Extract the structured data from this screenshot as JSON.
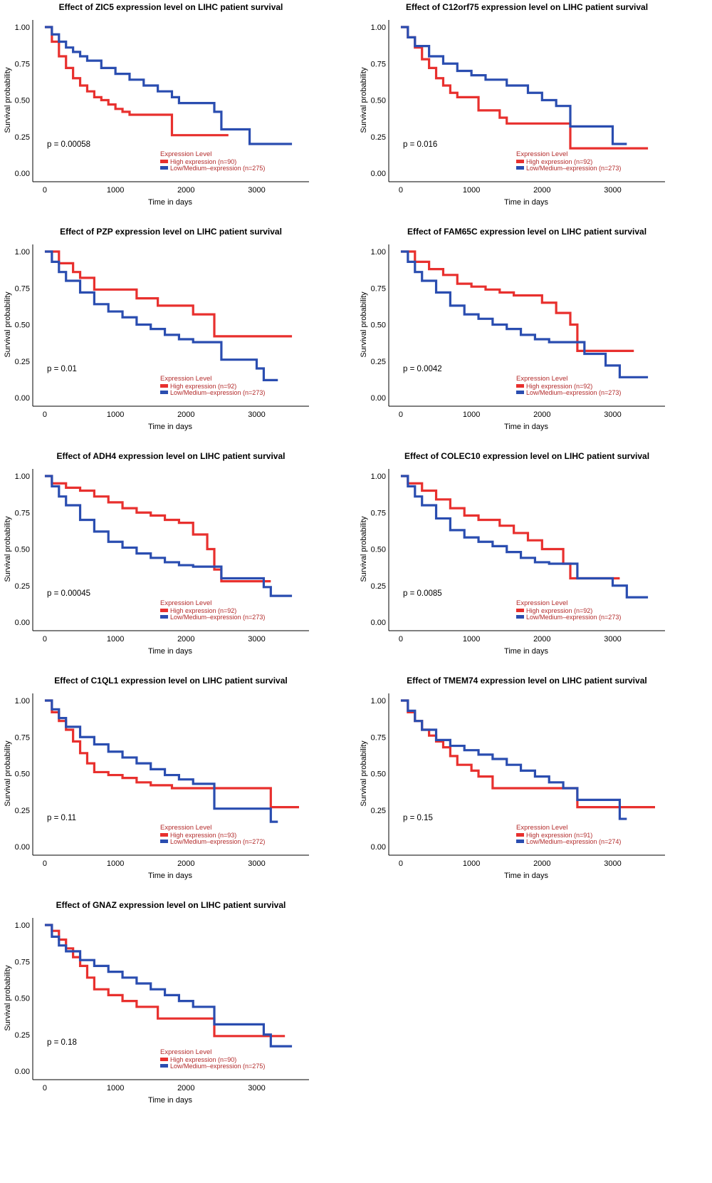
{
  "colors": {
    "high": "#e8302e",
    "low": "#2a4db0",
    "legend_text": "#b32b2b"
  },
  "chart_data": [
    {
      "type": "line",
      "title": "Effect of ZIC5 expression level on LIHC patient survival",
      "xlabel": "Time in days",
      "ylabel": "Survival probability",
      "xticks": [
        "0",
        "1000",
        "2000",
        "3000"
      ],
      "yticks": [
        "0.00",
        "0.25",
        "0.50",
        "0.75",
        "1.00"
      ],
      "xlim": [
        -50,
        3600
      ],
      "ylim": [
        0,
        1
      ],
      "pvalue": "p = 0.00058",
      "legend": {
        "title": "Expression Level",
        "high": "High expression (n=90)",
        "low": "Low/Medium–expression (n=275)"
      },
      "series": [
        {
          "name": "High expression (n=90)",
          "color": "#e8302e",
          "x": [
            0,
            100,
            200,
            300,
            400,
            500,
            600,
            700,
            800,
            900,
            1000,
            1100,
            1200,
            1800,
            2000,
            2600
          ],
          "y": [
            1,
            0.9,
            0.8,
            0.72,
            0.65,
            0.6,
            0.56,
            0.52,
            0.5,
            0.47,
            0.44,
            0.42,
            0.4,
            0.26,
            0.26,
            0.26
          ]
        },
        {
          "name": "Low/Medium–expression (n=275)",
          "color": "#2a4db0",
          "x": [
            0,
            100,
            200,
            300,
            400,
            500,
            600,
            800,
            1000,
            1200,
            1400,
            1600,
            1800,
            1900,
            2200,
            2400,
            2500,
            2700,
            2900,
            3200,
            3500
          ],
          "y": [
            1,
            0.95,
            0.9,
            0.86,
            0.83,
            0.8,
            0.77,
            0.72,
            0.68,
            0.64,
            0.6,
            0.56,
            0.52,
            0.48,
            0.48,
            0.42,
            0.3,
            0.3,
            0.2,
            0.2,
            0.2
          ]
        }
      ]
    },
    {
      "type": "line",
      "title": "Effect of C12orf75 expression level on LIHC patient survival",
      "xlabel": "Time in days",
      "ylabel": "Survival probability",
      "xticks": [
        "0",
        "1000",
        "2000",
        "3000"
      ],
      "yticks": [
        "0.00",
        "0.25",
        "0.50",
        "0.75",
        "1.00"
      ],
      "xlim": [
        -50,
        3600
      ],
      "ylim": [
        0,
        1
      ],
      "pvalue": "p = 0.016",
      "legend": {
        "title": "Expression Level",
        "high": "High expression (n=92)",
        "low": "Low/Medium–expression (n=273)"
      },
      "series": [
        {
          "name": "High expression (n=92)",
          "color": "#e8302e",
          "x": [
            0,
            100,
            200,
            300,
            400,
            500,
            600,
            700,
            800,
            1100,
            1400,
            1500,
            2300,
            2400,
            3500
          ],
          "y": [
            1,
            0.93,
            0.86,
            0.78,
            0.72,
            0.65,
            0.6,
            0.55,
            0.52,
            0.43,
            0.38,
            0.34,
            0.34,
            0.17,
            0.17
          ]
        },
        {
          "name": "Low/Medium–expression (n=273)",
          "color": "#2a4db0",
          "x": [
            0,
            100,
            200,
            400,
            600,
            800,
            1000,
            1200,
            1500,
            1800,
            2000,
            2200,
            2400,
            2600,
            2800,
            3000,
            3100,
            3200
          ],
          "y": [
            1,
            0.93,
            0.87,
            0.8,
            0.75,
            0.7,
            0.67,
            0.64,
            0.6,
            0.55,
            0.5,
            0.46,
            0.32,
            0.32,
            0.32,
            0.2,
            0.2,
            0.2
          ]
        }
      ]
    },
    {
      "type": "line",
      "title": "Effect of PZP expression level on LIHC patient survival",
      "xlabel": "Time in days",
      "ylabel": "Survival probability",
      "xticks": [
        "0",
        "1000",
        "2000",
        "3000"
      ],
      "yticks": [
        "0.00",
        "0.25",
        "0.50",
        "0.75",
        "1.00"
      ],
      "xlim": [
        -50,
        3600
      ],
      "ylim": [
        0,
        1
      ],
      "pvalue": "p = 0.01",
      "legend": {
        "title": "Expression Level",
        "high": "High expression (n=92)",
        "low": "Low/Medium–expression (n=273)"
      },
      "series": [
        {
          "name": "High expression (n=92)",
          "color": "#e8302e",
          "x": [
            0,
            200,
            400,
            500,
            700,
            1100,
            1300,
            1600,
            1900,
            2100,
            2400,
            3500
          ],
          "y": [
            1,
            0.92,
            0.86,
            0.82,
            0.74,
            0.74,
            0.68,
            0.63,
            0.63,
            0.57,
            0.42,
            0.42
          ]
        },
        {
          "name": "Low/Medium–expression (n=273)",
          "color": "#2a4db0",
          "x": [
            0,
            100,
            200,
            300,
            500,
            700,
            900,
            1100,
            1300,
            1500,
            1700,
            1900,
            2100,
            2300,
            2500,
            2700,
            3000,
            3100,
            3300
          ],
          "y": [
            1,
            0.93,
            0.86,
            0.8,
            0.72,
            0.64,
            0.59,
            0.55,
            0.5,
            0.47,
            0.43,
            0.4,
            0.38,
            0.38,
            0.26,
            0.26,
            0.2,
            0.12,
            0.12
          ]
        }
      ]
    },
    {
      "type": "line",
      "title": "Effect of FAM65C expression level on LIHC patient survival",
      "xlabel": "Time in days",
      "ylabel": "Survival probability",
      "xticks": [
        "0",
        "1000",
        "2000",
        "3000"
      ],
      "yticks": [
        "0.00",
        "0.25",
        "0.50",
        "0.75",
        "1.00"
      ],
      "xlim": [
        -50,
        3600
      ],
      "ylim": [
        0,
        1
      ],
      "pvalue": "p = 0.0042",
      "legend": {
        "title": "Expression Level",
        "high": "High expression (n=92)",
        "low": "Low/Medium–expression (n=273)"
      },
      "series": [
        {
          "name": "High expression (n=92)",
          "color": "#e8302e",
          "x": [
            0,
            200,
            400,
            600,
            800,
            1000,
            1200,
            1400,
            1600,
            2000,
            2200,
            2400,
            2500,
            3300
          ],
          "y": [
            1,
            0.93,
            0.88,
            0.84,
            0.78,
            0.76,
            0.74,
            0.72,
            0.7,
            0.65,
            0.58,
            0.5,
            0.32,
            0.32
          ]
        },
        {
          "name": "Low/Medium–expression (n=273)",
          "color": "#2a4db0",
          "x": [
            0,
            100,
            200,
            300,
            500,
            700,
            900,
            1100,
            1300,
            1500,
            1700,
            1900,
            2100,
            2400,
            2600,
            2900,
            3100,
            3500
          ],
          "y": [
            1,
            0.93,
            0.86,
            0.8,
            0.72,
            0.63,
            0.57,
            0.54,
            0.5,
            0.47,
            0.43,
            0.4,
            0.38,
            0.38,
            0.3,
            0.22,
            0.14,
            0.14
          ]
        }
      ]
    },
    {
      "type": "line",
      "title": "Effect of ADH4 expression level on LIHC patient survival",
      "xlabel": "Time in days",
      "ylabel": "Survival probability",
      "xticks": [
        "0",
        "1000",
        "2000",
        "3000"
      ],
      "yticks": [
        "0.00",
        "0.25",
        "0.50",
        "0.75",
        "1.00"
      ],
      "xlim": [
        -50,
        3600
      ],
      "ylim": [
        0,
        1
      ],
      "pvalue": "p = 0.00045",
      "legend": {
        "title": "Expression Level",
        "high": "High expression (n=92)",
        "low": "Low/Medium–expression (n=273)"
      },
      "series": [
        {
          "name": "High expression (n=92)",
          "color": "#e8302e",
          "x": [
            0,
            100,
            300,
            500,
            700,
            900,
            1100,
            1300,
            1500,
            1700,
            1900,
            2100,
            2300,
            2400,
            2500,
            3200
          ],
          "y": [
            1,
            0.95,
            0.92,
            0.9,
            0.86,
            0.82,
            0.78,
            0.75,
            0.73,
            0.7,
            0.68,
            0.6,
            0.5,
            0.36,
            0.28,
            0.28
          ]
        },
        {
          "name": "Low/Medium–expression (n=273)",
          "color": "#2a4db0",
          "x": [
            0,
            100,
            200,
            300,
            500,
            700,
            900,
            1100,
            1300,
            1500,
            1700,
            1900,
            2100,
            2300,
            2500,
            2800,
            3100,
            3200,
            3500
          ],
          "y": [
            1,
            0.93,
            0.86,
            0.8,
            0.7,
            0.62,
            0.55,
            0.51,
            0.47,
            0.44,
            0.41,
            0.39,
            0.38,
            0.38,
            0.3,
            0.3,
            0.24,
            0.18,
            0.18
          ]
        }
      ]
    },
    {
      "type": "line",
      "title": "Effect of COLEC10 expression level on LIHC patient survival",
      "xlabel": "Time in days",
      "ylabel": "Survival probability",
      "xticks": [
        "0",
        "1000",
        "2000",
        "3000"
      ],
      "yticks": [
        "0.00",
        "0.25",
        "0.50",
        "0.75",
        "1.00"
      ],
      "xlim": [
        -50,
        3600
      ],
      "ylim": [
        0,
        1
      ],
      "pvalue": "p = 0.0085",
      "legend": {
        "title": "Expression Level",
        "high": "High expression (n=92)",
        "low": "Low/Medium–expression (n=273)"
      },
      "series": [
        {
          "name": "High expression (n=92)",
          "color": "#e8302e",
          "x": [
            0,
            100,
            300,
            500,
            700,
            900,
            1100,
            1400,
            1600,
            1800,
            2000,
            2300,
            2400,
            3100
          ],
          "y": [
            1,
            0.95,
            0.9,
            0.84,
            0.78,
            0.73,
            0.7,
            0.66,
            0.61,
            0.56,
            0.5,
            0.4,
            0.3,
            0.3
          ]
        },
        {
          "name": "Low/Medium–expression (n=273)",
          "color": "#2a4db0",
          "x": [
            0,
            100,
            200,
            300,
            500,
            700,
            900,
            1100,
            1300,
            1500,
            1700,
            1900,
            2100,
            2300,
            2500,
            2800,
            3000,
            3200,
            3500
          ],
          "y": [
            1,
            0.93,
            0.86,
            0.8,
            0.71,
            0.63,
            0.58,
            0.55,
            0.52,
            0.48,
            0.44,
            0.41,
            0.4,
            0.4,
            0.3,
            0.3,
            0.25,
            0.17,
            0.17
          ]
        }
      ]
    },
    {
      "type": "line",
      "title": "Effect of C1QL1 expression level on LIHC patient survival",
      "xlabel": "Time in days",
      "ylabel": "Survival probability",
      "xticks": [
        "0",
        "1000",
        "2000",
        "3000"
      ],
      "yticks": [
        "0.00",
        "0.25",
        "0.50",
        "0.75",
        "1.00"
      ],
      "xlim": [
        -50,
        3600
      ],
      "ylim": [
        0,
        1
      ],
      "pvalue": "p = 0.11",
      "legend": {
        "title": "Expression Level",
        "high": "High expression (n=93)",
        "low": "Low/Medium–expression (n=272)"
      },
      "series": [
        {
          "name": "High expression (n=93)",
          "color": "#e8302e",
          "x": [
            0,
            100,
            200,
            300,
            400,
            500,
            600,
            700,
            900,
            1100,
            1300,
            1500,
            1800,
            2100,
            2500,
            3000,
            3200,
            3600
          ],
          "y": [
            1,
            0.92,
            0.86,
            0.8,
            0.72,
            0.64,
            0.57,
            0.51,
            0.49,
            0.47,
            0.44,
            0.42,
            0.4,
            0.4,
            0.4,
            0.4,
            0.27,
            0.27
          ]
        },
        {
          "name": "Low/Medium–expression (n=272)",
          "color": "#2a4db0",
          "x": [
            0,
            100,
            200,
            300,
            500,
            700,
            900,
            1100,
            1300,
            1500,
            1700,
            1900,
            2100,
            2300,
            2400,
            2600,
            3000,
            3200,
            3300
          ],
          "y": [
            1,
            0.94,
            0.88,
            0.82,
            0.75,
            0.7,
            0.65,
            0.61,
            0.57,
            0.53,
            0.49,
            0.46,
            0.43,
            0.43,
            0.26,
            0.26,
            0.26,
            0.17,
            0.17
          ]
        }
      ]
    },
    {
      "type": "line",
      "title": "Effect of TMEM74 expression level on LIHC patient survival",
      "xlabel": "Time in days",
      "ylabel": "Survival probability",
      "xticks": [
        "0",
        "1000",
        "2000",
        "3000"
      ],
      "yticks": [
        "0.00",
        "0.25",
        "0.50",
        "0.75",
        "1.00"
      ],
      "xlim": [
        -50,
        3600
      ],
      "ylim": [
        0,
        1
      ],
      "pvalue": "p = 0.15",
      "legend": {
        "title": "Expression Level",
        "high": "High expression (n=91)",
        "low": "Low/Medium–expression (n=274)"
      },
      "series": [
        {
          "name": "High expression (n=91)",
          "color": "#e8302e",
          "x": [
            0,
            100,
            200,
            300,
            400,
            500,
            600,
            700,
            800,
            1000,
            1100,
            1300,
            1500,
            2000,
            2400,
            2500,
            3000,
            3200,
            3600
          ],
          "y": [
            1,
            0.92,
            0.86,
            0.8,
            0.76,
            0.72,
            0.68,
            0.62,
            0.56,
            0.52,
            0.48,
            0.4,
            0.4,
            0.4,
            0.4,
            0.27,
            0.27,
            0.27,
            0.27
          ]
        },
        {
          "name": "Low/Medium–expression (n=274)",
          "color": "#2a4db0",
          "x": [
            0,
            100,
            200,
            300,
            500,
            700,
            900,
            1100,
            1300,
            1500,
            1700,
            1900,
            2100,
            2300,
            2400,
            2500,
            3000,
            3100,
            3200
          ],
          "y": [
            1,
            0.93,
            0.86,
            0.8,
            0.73,
            0.69,
            0.66,
            0.63,
            0.6,
            0.56,
            0.52,
            0.48,
            0.44,
            0.4,
            0.4,
            0.32,
            0.32,
            0.19,
            0.19
          ]
        }
      ]
    },
    {
      "type": "line",
      "title": "Effect of GNAZ expression level on LIHC patient survival",
      "xlabel": "Time in days",
      "ylabel": "Survival probability",
      "xticks": [
        "0",
        "1000",
        "2000",
        "3000"
      ],
      "yticks": [
        "0.00",
        "0.25",
        "0.50",
        "0.75",
        "1.00"
      ],
      "xlim": [
        -50,
        3600
      ],
      "ylim": [
        0,
        1
      ],
      "pvalue": "p = 0.18",
      "legend": {
        "title": "Expression Level",
        "high": "High expression (n=90)",
        "low": "Low/Medium–expression (n=275)"
      },
      "series": [
        {
          "name": "High expression (n=90)",
          "color": "#e8302e",
          "x": [
            0,
            100,
            200,
            300,
            400,
            500,
            600,
            700,
            900,
            1100,
            1300,
            1600,
            2000,
            2300,
            2400,
            2800,
            3400
          ],
          "y": [
            1,
            0.96,
            0.9,
            0.84,
            0.78,
            0.72,
            0.64,
            0.56,
            0.52,
            0.48,
            0.44,
            0.36,
            0.36,
            0.36,
            0.24,
            0.24,
            0.24
          ]
        },
        {
          "name": "Low/Medium–expression (n=275)",
          "color": "#2a4db0",
          "x": [
            0,
            100,
            200,
            300,
            500,
            700,
            900,
            1100,
            1300,
            1500,
            1700,
            1900,
            2100,
            2300,
            2400,
            2700,
            3100,
            3200,
            3500
          ],
          "y": [
            1,
            0.92,
            0.86,
            0.82,
            0.76,
            0.72,
            0.68,
            0.64,
            0.6,
            0.56,
            0.52,
            0.48,
            0.44,
            0.44,
            0.32,
            0.32,
            0.25,
            0.17,
            0.17
          ]
        }
      ]
    }
  ]
}
